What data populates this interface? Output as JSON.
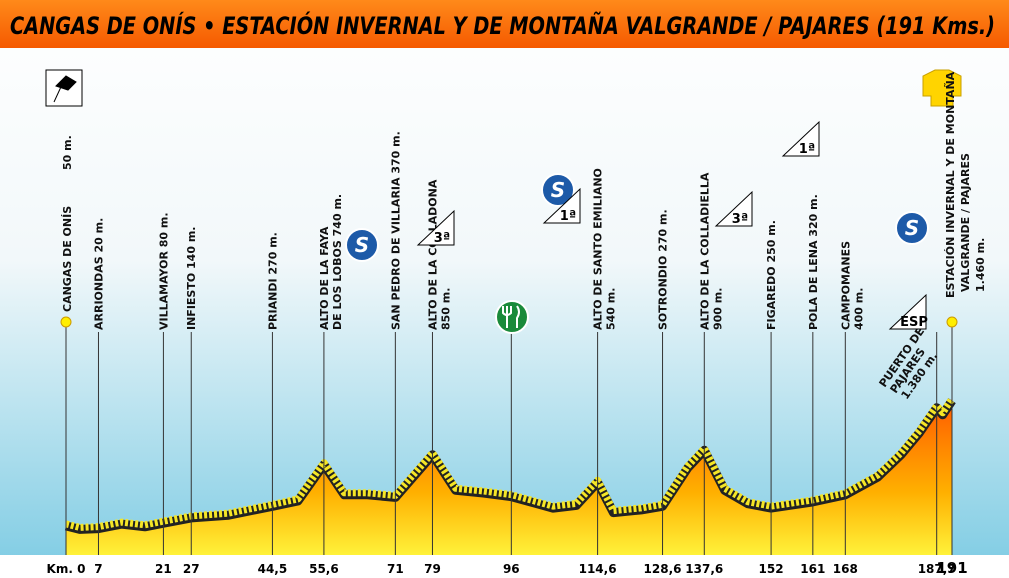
{
  "chart_data": {
    "type": "area",
    "title": "CANGAS DE ONÍS • ESTACIÓN INVERNAL Y DE MONTAÑA VALGRANDE / PAJARES (191 Kms.)",
    "profile": {
      "x": [
        0,
        3,
        7,
        12,
        17,
        21,
        27,
        35,
        44.5,
        50,
        55.6,
        60,
        65,
        71,
        79,
        84,
        90,
        96,
        105,
        110,
        114.6,
        118,
        124,
        128.6,
        134,
        137.6,
        142,
        147,
        152,
        161,
        168,
        175,
        180,
        184,
        187.7,
        189,
        191
      ],
      "values": [
        50,
        10,
        20,
        70,
        40,
        80,
        140,
        170,
        270,
        330,
        740,
        400,
        400,
        370,
        850,
        450,
        420,
        380,
        250,
        280,
        540,
        200,
        230,
        270,
        700,
        900,
        450,
        300,
        250,
        320,
        400,
        600,
        850,
        1100,
        1380,
        1300,
        1460
      ],
      "color": "#f5e626"
    },
    "ylim": [
      -300,
      1500
    ],
    "xlim": [
      0,
      191
    ],
    "xticks": [
      {
        "value": 0,
        "label": "Km. 0"
      },
      7,
      21,
      27,
      {
        "value": 44.5,
        "label": "44,5"
      },
      {
        "value": 55.6,
        "label": "55,6"
      },
      71,
      79,
      96,
      {
        "value": 114.6,
        "label": "114,6"
      },
      {
        "value": 128.6,
        "label": "128,6"
      },
      {
        "value": 137.6,
        "label": "137,6"
      },
      152,
      161,
      168,
      {
        "value": 187.7,
        "label": "187,7"
      },
      191
    ],
    "waypoints": [
      [
        "CANGAS DE ONÍS",
        "50 m."
      ],
      [
        "ARRIONDAS  20 m."
      ],
      [
        "VILLAMAYOR  80 m."
      ],
      [
        "INFIESTO  140 m."
      ],
      [
        "PRIANDI  270 m."
      ],
      [
        "ALTO DE LA FAYA",
        "DE LOS LOBOS  740 m."
      ],
      [
        "SAN PEDRO DE VILLARIA  370 m."
      ],
      [
        "ALTO DE LA COLLADONA",
        "850 m."
      ],
      null,
      [
        "ALTO DE SANTO EMILIANO",
        "540 m."
      ],
      [
        "SOTRONDIO  270 m."
      ],
      [
        "ALTO DE LA COLLADIELLA",
        "900 m."
      ],
      [
        "FIGAREDO  250 m."
      ],
      [
        "POLA DE LENA  320 m."
      ],
      [
        "CAMPOMANES",
        "400 m."
      ],
      [
        "PUERTO DE",
        "PAJARES",
        "1.380 m."
      ],
      [
        "ESTACIÓN INVERNAL Y DE MONTAÑA",
        "VALGRANDE / PAJARES",
        "1.460 m."
      ]
    ],
    "markers": [
      "S",
      "3ª",
      "S",
      "1ª",
      "3ª",
      "1ª",
      "S",
      "ESP"
    ]
  }
}
